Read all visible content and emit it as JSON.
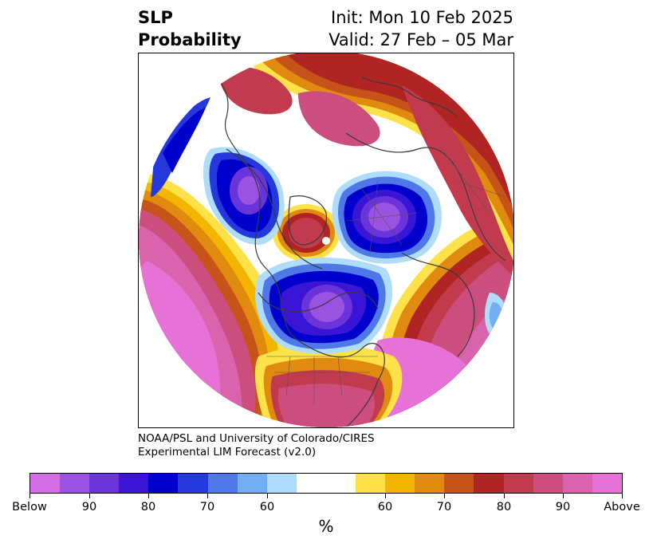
{
  "header": {
    "title_line1": "SLP",
    "title_line2": "Probability",
    "init_label": "Init: Mon 10 Feb 2025",
    "valid_label": "Valid: 27 Feb – 05 Mar"
  },
  "credit": {
    "line1": "NOAA/PSL and University of Colorado/CIRES",
    "line2": "Experimental LIM Forecast (v2.0)"
  },
  "colorbar": {
    "unit": "%",
    "colors": [
      "#d46ee6",
      "#9a52e0",
      "#6a34da",
      "#3a15d6",
      "#0000cc",
      "#2438dc",
      "#4e78e8",
      "#74aef2",
      "#aedcfa",
      "#ffffff",
      "#ffe14a",
      "#f2b600",
      "#e08a10",
      "#c65418",
      "#b02424",
      "#c23a4e",
      "#cc4e7e",
      "#d963ac",
      "#e672d8"
    ],
    "labels": [
      "Below",
      "90",
      "80",
      "70",
      "60",
      "60",
      "70",
      "80",
      "90",
      "Above"
    ]
  },
  "map": {
    "projection": "north-polar-stereographic",
    "features": [
      "north-america-low",
      "siberia-low",
      "alaska-low",
      "arctic-high",
      "pacific-high",
      "eurasia-high",
      "atlantic-high"
    ]
  }
}
